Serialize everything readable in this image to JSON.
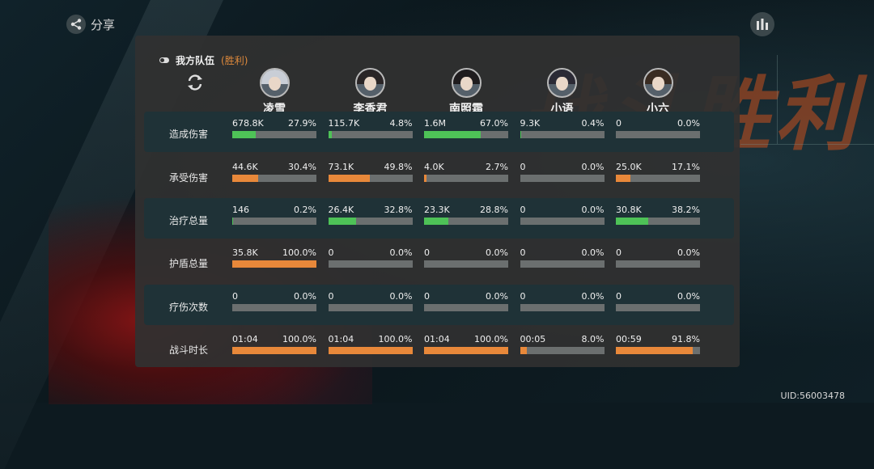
{
  "header": {
    "share_label": "分享",
    "team_label": "我方队伍",
    "team_result": "(胜利)",
    "bg_victory_text": "战斗胜利"
  },
  "heroes": [
    {
      "name": "凌雪",
      "hair_color": "#c9ced6"
    },
    {
      "name": "李香君",
      "hair_color": "#2a2526"
    },
    {
      "name": "南照霜",
      "hair_color": "#1f1c1e"
    },
    {
      "name": "小语",
      "hair_color": "#2b2a35"
    },
    {
      "name": "小六",
      "hair_color": "#3a2c22"
    }
  ],
  "colors": {
    "green": "#4ec257",
    "orange": "#e8883a",
    "track": "#6b6f6f",
    "panel": "#303030",
    "dark_row": "#1f3237"
  },
  "rows": [
    {
      "label": "造成伤害",
      "color": "green",
      "dark": true,
      "cells": [
        {
          "value": "678.8K",
          "pct": "27.9%",
          "frac": 0.279
        },
        {
          "value": "115.7K",
          "pct": "4.8%",
          "frac": 0.048
        },
        {
          "value": "1.6M",
          "pct": "67.0%",
          "frac": 0.67
        },
        {
          "value": "9.3K",
          "pct": "0.4%",
          "frac": 0.004
        },
        {
          "value": "0",
          "pct": "0.0%",
          "frac": 0
        }
      ]
    },
    {
      "label": "承受伤害",
      "color": "orange",
      "dark": false,
      "cells": [
        {
          "value": "44.6K",
          "pct": "30.4%",
          "frac": 0.304
        },
        {
          "value": "73.1K",
          "pct": "49.8%",
          "frac": 0.498
        },
        {
          "value": "4.0K",
          "pct": "2.7%",
          "frac": 0.027
        },
        {
          "value": "0",
          "pct": "0.0%",
          "frac": 0
        },
        {
          "value": "25.0K",
          "pct": "17.1%",
          "frac": 0.171
        }
      ]
    },
    {
      "label": "治疗总量",
      "color": "green",
      "dark": true,
      "cells": [
        {
          "value": "146",
          "pct": "0.2%",
          "frac": 0.002
        },
        {
          "value": "26.4K",
          "pct": "32.8%",
          "frac": 0.328
        },
        {
          "value": "23.3K",
          "pct": "28.8%",
          "frac": 0.288
        },
        {
          "value": "0",
          "pct": "0.0%",
          "frac": 0
        },
        {
          "value": "30.8K",
          "pct": "38.2%",
          "frac": 0.382
        }
      ]
    },
    {
      "label": "护盾总量",
      "color": "orange",
      "dark": false,
      "cells": [
        {
          "value": "35.8K",
          "pct": "100.0%",
          "frac": 1.0
        },
        {
          "value": "0",
          "pct": "0.0%",
          "frac": 0
        },
        {
          "value": "0",
          "pct": "0.0%",
          "frac": 0
        },
        {
          "value": "0",
          "pct": "0.0%",
          "frac": 0
        },
        {
          "value": "0",
          "pct": "0.0%",
          "frac": 0
        }
      ]
    },
    {
      "label": "疗伤次数",
      "color": "orange",
      "dark": true,
      "cells": [
        {
          "value": "0",
          "pct": "0.0%",
          "frac": 0
        },
        {
          "value": "0",
          "pct": "0.0%",
          "frac": 0
        },
        {
          "value": "0",
          "pct": "0.0%",
          "frac": 0
        },
        {
          "value": "0",
          "pct": "0.0%",
          "frac": 0
        },
        {
          "value": "0",
          "pct": "0.0%",
          "frac": 0
        }
      ]
    },
    {
      "label": "战斗时长",
      "color": "orange",
      "dark": false,
      "cells": [
        {
          "value": "01:04",
          "pct": "100.0%",
          "frac": 1.0
        },
        {
          "value": "01:04",
          "pct": "100.0%",
          "frac": 1.0
        },
        {
          "value": "01:04",
          "pct": "100.0%",
          "frac": 1.0
        },
        {
          "value": "00:05",
          "pct": "8.0%",
          "frac": 0.08
        },
        {
          "value": "00:59",
          "pct": "91.8%",
          "frac": 0.918
        }
      ]
    }
  ],
  "footer": {
    "uid": "UID:56003478"
  }
}
